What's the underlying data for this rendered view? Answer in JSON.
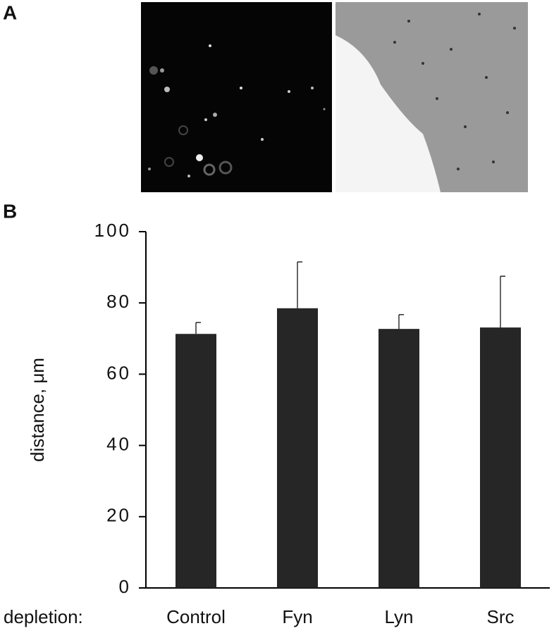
{
  "panel_labels": [
    "A",
    "B"
  ],
  "chart_data": {
    "type": "bar",
    "ylabel": "distance, μm",
    "xlabel": "depletion:",
    "categories": [
      "Control",
      "Fyn",
      "Lyn",
      "Src"
    ],
    "values": [
      71.3,
      78.5,
      72.7,
      73.1
    ],
    "errors": [
      3.2,
      13,
      4,
      14.4
    ],
    "color": "#262626",
    "ylim": [
      0,
      100
    ],
    "yticks": [
      0,
      20,
      40,
      60,
      80,
      100
    ],
    "grid": false
  }
}
